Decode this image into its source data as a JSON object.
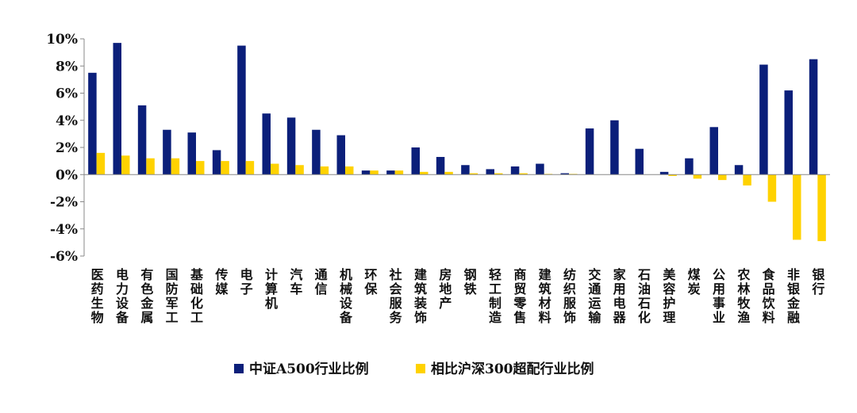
{
  "chart_data": {
    "type": "bar",
    "categories": [
      "医药生物",
      "电力设备",
      "有色金属",
      "国防军工",
      "基础化工",
      "传媒",
      "电子",
      "计算机",
      "汽车",
      "通信",
      "机械设备",
      "环保",
      "社会服务",
      "建筑装饰",
      "房地产",
      "钢铁",
      "轻工制造",
      "商贸零售",
      "建筑材料",
      "纺织服饰",
      "交通运输",
      "家用电器",
      "石油石化",
      "美容护理",
      "煤炭",
      "公用事业",
      "农林牧渔",
      "食品饮料",
      "非银金融",
      "银行"
    ],
    "series": [
      {
        "name": "中证A500行业比例",
        "color": "#0b1f7a",
        "values": [
          7.5,
          9.7,
          5.1,
          3.3,
          3.1,
          1.8,
          9.5,
          4.5,
          4.2,
          3.3,
          2.9,
          0.3,
          0.3,
          2.0,
          1.3,
          0.7,
          0.4,
          0.6,
          0.8,
          0.1,
          3.4,
          4.0,
          1.9,
          0.2,
          1.2,
          3.5,
          0.7,
          8.1,
          6.2,
          8.5
        ]
      },
      {
        "name": "相比沪深300超配行业比例",
        "color": "#ffd200",
        "values": [
          1.6,
          1.4,
          1.2,
          1.2,
          1.0,
          1.0,
          1.0,
          0.8,
          0.7,
          0.6,
          0.6,
          0.3,
          0.3,
          0.2,
          0.2,
          0.1,
          0.1,
          0.1,
          0.05,
          0.05,
          0.0,
          0.0,
          0.0,
          -0.1,
          -0.3,
          -0.4,
          -0.8,
          -2.0,
          -4.8,
          -4.9
        ]
      }
    ],
    "ylim": [
      -6,
      10
    ],
    "yticks": [
      10,
      8,
      6,
      4,
      2,
      0,
      -2,
      -4,
      -6
    ],
    "ytick_labels": [
      "10%",
      "8%",
      "6%",
      "4%",
      "2%",
      "0%",
      "-2%",
      "-4%",
      "-6%"
    ],
    "title": "",
    "xlabel": "",
    "ylabel": "",
    "grid": false,
    "legend_position": "bottom"
  }
}
